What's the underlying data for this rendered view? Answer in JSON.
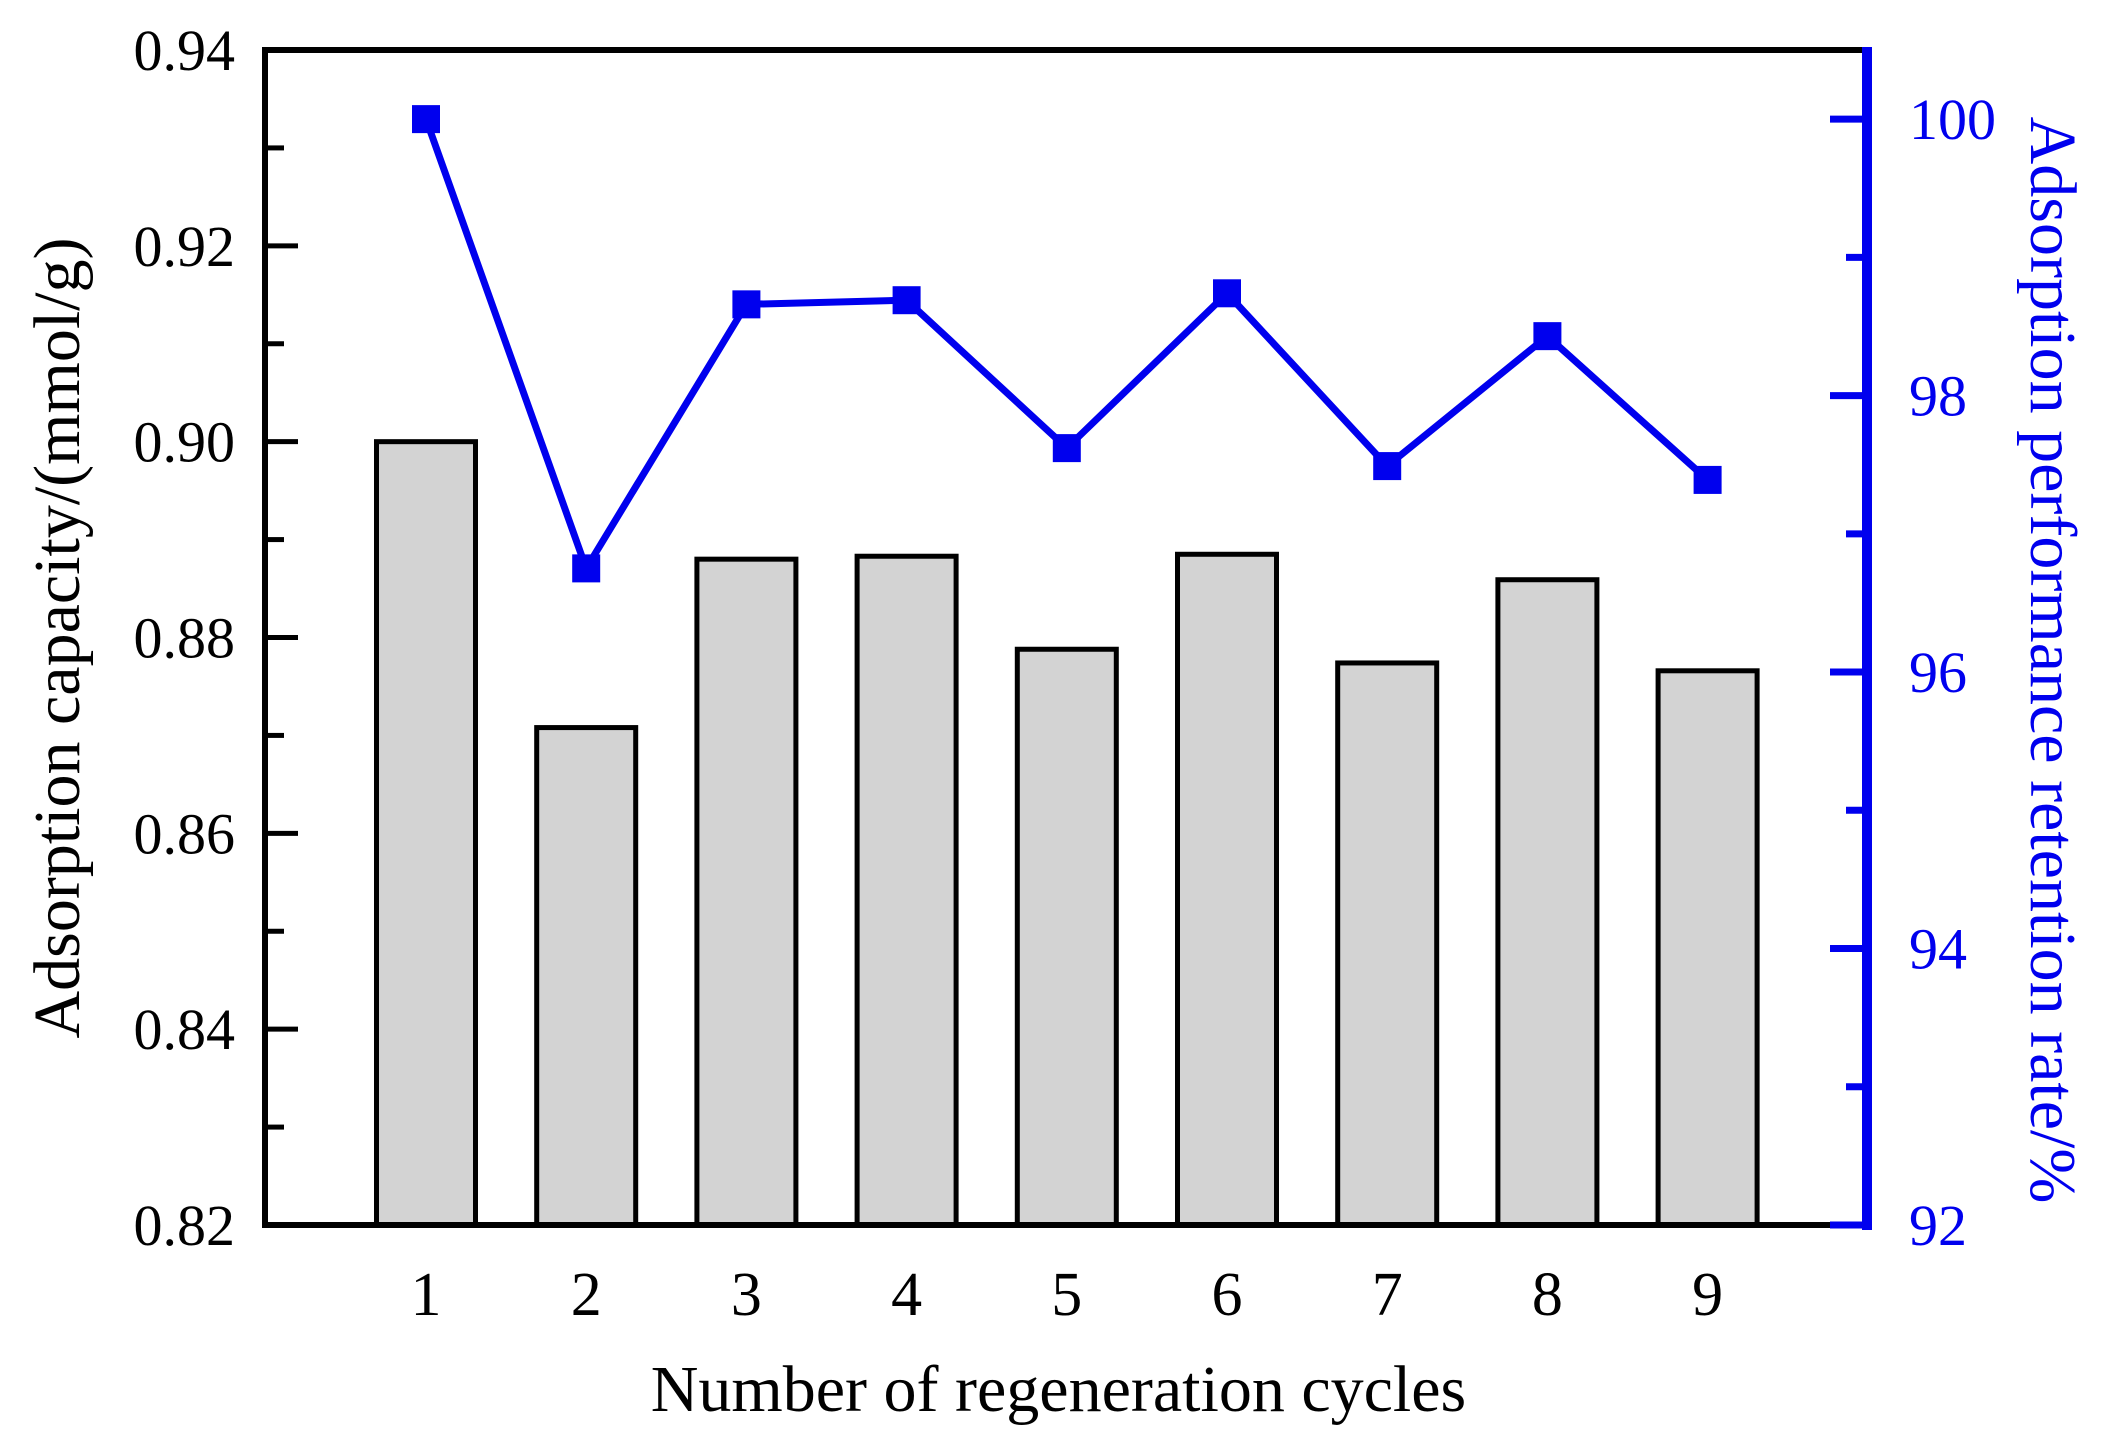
{
  "chart_data": {
    "type": "bar",
    "subtype": "dual-axis-bar-line-combo",
    "categories": [
      "1",
      "2",
      "3",
      "4",
      "5",
      "6",
      "7",
      "8",
      "9"
    ],
    "series": [
      {
        "name": "Adsorption capacity",
        "type": "bar",
        "axis": "left",
        "values": [
          0.9,
          0.8708,
          0.888,
          0.8883,
          0.8788,
          0.8885,
          0.8774,
          0.8859,
          0.8766
        ],
        "fill": "#d3d3d3",
        "stroke": "#000000"
      },
      {
        "name": "Adsorption performance retention rate",
        "type": "line",
        "axis": "right",
        "marker": "square",
        "values": [
          100.0,
          96.75,
          98.66,
          98.69,
          97.62,
          98.74,
          97.49,
          98.43,
          97.39
        ],
        "color": "#0000ee"
      }
    ],
    "xlabel": "Number of regeneration cycles",
    "left_axis": {
      "label": "Adsorption capacity/(mmol/g)",
      "min": 0.82,
      "max": 0.94,
      "major_ticks": [
        0.82,
        0.84,
        0.86,
        0.88,
        0.9,
        0.92,
        0.94
      ],
      "tick_labels": [
        "0.82",
        "0.84",
        "0.86",
        "0.88",
        "0.90",
        "0.92",
        "0.94"
      ],
      "minor_step": 0.01,
      "color": "#000000"
    },
    "right_axis": {
      "label": "Adsorption performance retention rate/%",
      "min": 92,
      "max": 100.5,
      "major_ticks": [
        92,
        94,
        96,
        98,
        100
      ],
      "tick_labels": [
        "92",
        "94",
        "96",
        "98",
        "100"
      ],
      "minor_step": 1,
      "color": "#0000ee"
    },
    "grid": false,
    "legend": false
  }
}
